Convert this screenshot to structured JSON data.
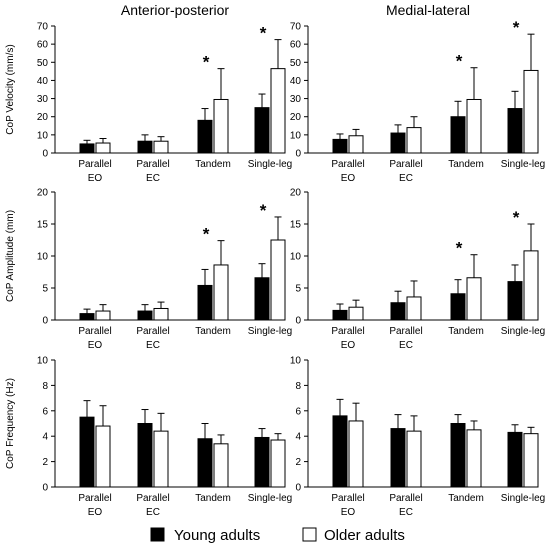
{
  "figure": {
    "column_titles": [
      "Anterior-posterior",
      "Medial-lateral"
    ],
    "legend": [
      {
        "label": "Young adults",
        "fill": "#000000"
      },
      {
        "label": "Older adults",
        "fill": "#ffffff"
      }
    ],
    "colors": {
      "young": "#000000",
      "older": "#ffffff",
      "stroke": "#000000"
    }
  },
  "chart_data": [
    {
      "type": "bar",
      "panel": "velocity-ap",
      "title": "Anterior-posterior",
      "ylabel": "CoP Velocity (mm/s)",
      "ylim": [
        0,
        70
      ],
      "yticks": [
        0,
        10,
        20,
        30,
        40,
        50,
        60,
        70
      ],
      "categories": [
        [
          "Parallel",
          "EO"
        ],
        [
          "Parallel",
          "EC"
        ],
        [
          "Tandem"
        ],
        [
          "Single-leg"
        ]
      ],
      "series": [
        {
          "name": "Young adults",
          "values": [
            5,
            6.5,
            18,
            25
          ],
          "errors": [
            2,
            3.5,
            6.5,
            7.5
          ]
        },
        {
          "name": "Older adults",
          "values": [
            5.5,
            6.5,
            29.5,
            46.5
          ],
          "errors": [
            2.5,
            2.5,
            17,
            16
          ]
        }
      ],
      "significant": [
        false,
        false,
        true,
        true
      ]
    },
    {
      "type": "bar",
      "panel": "velocity-ml",
      "title": "Medial-lateral",
      "ylabel": "",
      "ylim": [
        0,
        70
      ],
      "yticks": [
        0,
        10,
        20,
        30,
        40,
        50,
        60,
        70
      ],
      "categories": [
        [
          "Parallel",
          "EO"
        ],
        [
          "Parallel",
          "EC"
        ],
        [
          "Tandem"
        ],
        [
          "Single-leg"
        ]
      ],
      "series": [
        {
          "name": "Young adults",
          "values": [
            7.5,
            11,
            20,
            24.5
          ],
          "errors": [
            3,
            4.5,
            8.5,
            9.5
          ]
        },
        {
          "name": "Older adults",
          "values": [
            9.5,
            14,
            29.5,
            45.5
          ],
          "errors": [
            3.5,
            6,
            17.5,
            20
          ]
        }
      ],
      "significant": [
        false,
        false,
        true,
        true
      ]
    },
    {
      "type": "bar",
      "panel": "amplitude-ap",
      "title": "",
      "ylabel": "CoP Amplitude (mm)",
      "ylim": [
        0,
        20
      ],
      "yticks": [
        0,
        5,
        10,
        15,
        20
      ],
      "categories": [
        [
          "Parallel",
          "EO"
        ],
        [
          "Parallel",
          "EC"
        ],
        [
          "Tandem"
        ],
        [
          "Single-leg"
        ]
      ],
      "series": [
        {
          "name": "Young adults",
          "values": [
            1,
            1.4,
            5.4,
            6.6
          ],
          "errors": [
            0.7,
            1,
            2.5,
            2.2
          ]
        },
        {
          "name": "Older adults",
          "values": [
            1.4,
            1.8,
            8.6,
            12.5
          ],
          "errors": [
            1,
            1,
            3.8,
            3.6
          ]
        }
      ],
      "significant": [
        false,
        false,
        true,
        true
      ]
    },
    {
      "type": "bar",
      "panel": "amplitude-ml",
      "title": "",
      "ylabel": "",
      "ylim": [
        0,
        20
      ],
      "yticks": [
        0,
        5,
        10,
        15,
        20
      ],
      "categories": [
        [
          "Parallel",
          "EO"
        ],
        [
          "Parallel",
          "EC"
        ],
        [
          "Tandem"
        ],
        [
          "Single-leg"
        ]
      ],
      "series": [
        {
          "name": "Young adults",
          "values": [
            1.5,
            2.7,
            4.1,
            6
          ],
          "errors": [
            1,
            1.8,
            2.2,
            2.6
          ]
        },
        {
          "name": "Older adults",
          "values": [
            2,
            3.6,
            6.6,
            10.8
          ],
          "errors": [
            1.1,
            2.5,
            3.6,
            4.2
          ]
        }
      ],
      "significant": [
        false,
        false,
        true,
        true
      ]
    },
    {
      "type": "bar",
      "panel": "frequency-ap",
      "title": "",
      "ylabel": "CoP Frequency (Hz)",
      "ylim": [
        0,
        10
      ],
      "yticks": [
        0,
        2,
        4,
        6,
        8,
        10
      ],
      "categories": [
        [
          "Parallel",
          "EO"
        ],
        [
          "Parallel",
          "EC"
        ],
        [
          "Tandem"
        ],
        [
          "Single-leg"
        ]
      ],
      "series": [
        {
          "name": "Young adults",
          "values": [
            5.5,
            5,
            3.8,
            3.9
          ],
          "errors": [
            1.3,
            1.1,
            1.2,
            0.7
          ]
        },
        {
          "name": "Older adults",
          "values": [
            4.8,
            4.4,
            3.4,
            3.7
          ],
          "errors": [
            1.6,
            1.4,
            0.7,
            0.5
          ]
        }
      ],
      "significant": [
        false,
        false,
        false,
        false
      ]
    },
    {
      "type": "bar",
      "panel": "frequency-ml",
      "title": "",
      "ylabel": "",
      "ylim": [
        0,
        10
      ],
      "yticks": [
        0,
        2,
        4,
        6,
        8,
        10
      ],
      "categories": [
        [
          "Parallel",
          "EO"
        ],
        [
          "Parallel",
          "EC"
        ],
        [
          "Tandem"
        ],
        [
          "Single-leg"
        ]
      ],
      "series": [
        {
          "name": "Young adults",
          "values": [
            5.6,
            4.6,
            5,
            4.3
          ],
          "errors": [
            1.3,
            1.1,
            0.7,
            0.6
          ]
        },
        {
          "name": "Older adults",
          "values": [
            5.2,
            4.4,
            4.5,
            4.2
          ],
          "errors": [
            1.4,
            1.2,
            0.7,
            0.5
          ]
        }
      ],
      "significant": [
        false,
        false,
        false,
        false
      ]
    }
  ]
}
